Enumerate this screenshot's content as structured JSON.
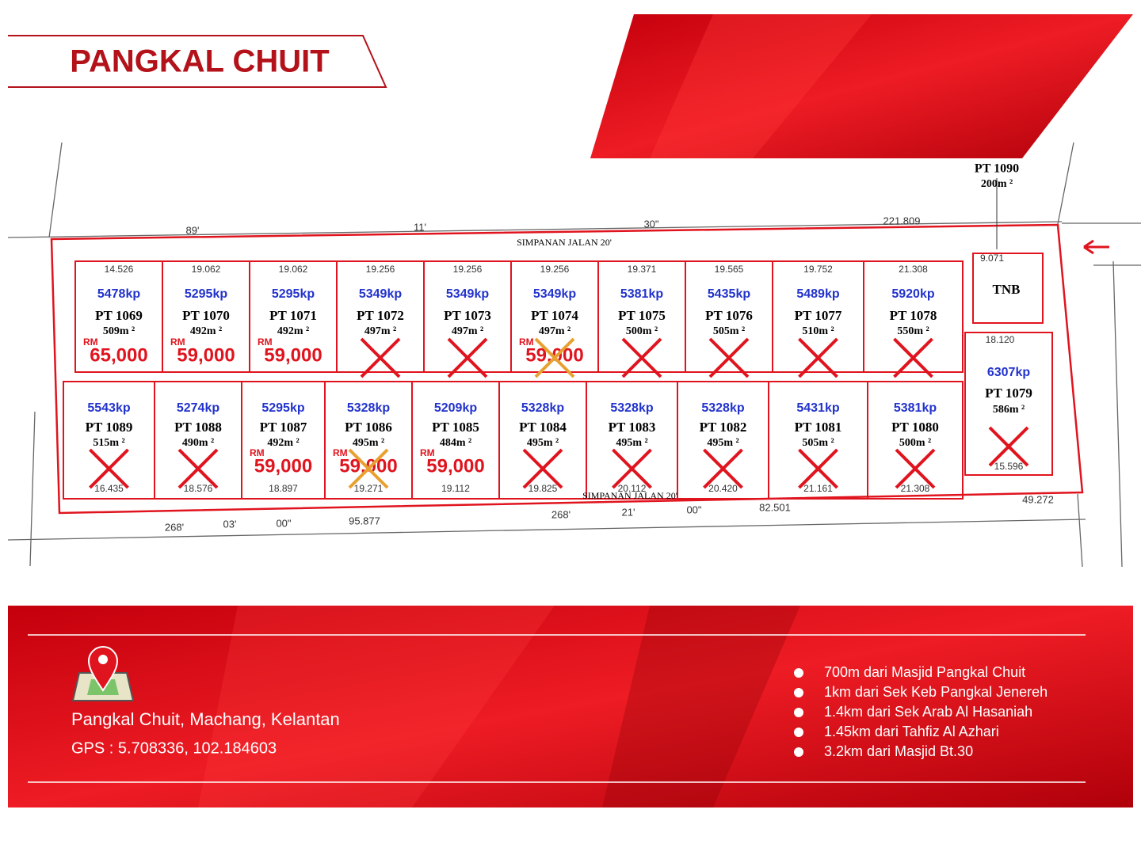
{
  "header": {
    "title": "PANGKAL CHUIT"
  },
  "roads": [
    "SIMPANAN JALAN 20'",
    "SIMPANAN JALAN 20'"
  ],
  "pt1090": {
    "lot": "PT 1090",
    "area": "200m ²"
  },
  "tnb": {
    "label": "TNB",
    "width": "9.071"
  },
  "top_row": [
    {
      "lot": "PT 1069",
      "rate": "5478kp",
      "area": "509m ²",
      "currency": "RM",
      "price": "65,000",
      "dim": "14.526"
    },
    {
      "lot": "PT 1070",
      "rate": "5295kp",
      "area": "492m ²",
      "currency": "RM",
      "price": "59,000",
      "dim": "19.062"
    },
    {
      "lot": "PT 1071",
      "rate": "5295kp",
      "area": "492m ²",
      "currency": "RM",
      "price": "59,000",
      "dim": "19.062"
    },
    {
      "lot": "PT 1072",
      "rate": "5349kp",
      "area": "497m ²",
      "cross_color": "#e0141e",
      "dim": "19.256"
    },
    {
      "lot": "PT 1073",
      "rate": "5349kp",
      "area": "497m ²",
      "cross_color": "#e0141e",
      "dim": "19.256"
    },
    {
      "lot": "PT 1074",
      "rate": "5349kp",
      "area": "497m ²",
      "currency": "RM",
      "price": "59,000",
      "cross_color": "#e8a030",
      "dim": "19.256"
    },
    {
      "lot": "PT 1075",
      "rate": "5381kp",
      "area": "500m ²",
      "cross_color": "#e0141e",
      "dim": "19.371"
    },
    {
      "lot": "PT 1076",
      "rate": "5435kp",
      "area": "505m ²",
      "cross_color": "#e0141e",
      "dim": "19.565"
    },
    {
      "lot": "PT 1077",
      "rate": "5489kp",
      "area": "510m ²",
      "cross_color": "#e0141e",
      "dim": "19.752"
    },
    {
      "lot": "PT 1078",
      "rate": "5920kp",
      "area": "550m ²",
      "cross_color": "#e0141e",
      "dim": "21.308"
    }
  ],
  "bottom_row": [
    {
      "lot": "PT 1089",
      "rate": "5543kp",
      "area": "515m ²",
      "cross_color": "#e0141e",
      "dim": "16.435"
    },
    {
      "lot": "PT 1088",
      "rate": "5274kp",
      "area": "490m ²",
      "cross_color": "#e0141e",
      "dim": "18.576"
    },
    {
      "lot": "PT 1087",
      "rate": "5295kp",
      "area": "492m ²",
      "currency": "RM",
      "price": "59,000",
      "dim": "18.897"
    },
    {
      "lot": "PT 1086",
      "rate": "5328kp",
      "area": "495m ²",
      "currency": "RM",
      "price": "59,000",
      "cross_color": "#e8a030",
      "dim": "19.271"
    },
    {
      "lot": "PT 1085",
      "rate": "5209kp",
      "area": "484m ²",
      "currency": "RM",
      "price": "59,000",
      "dim": "19.112"
    },
    {
      "lot": "PT 1084",
      "rate": "5328kp",
      "area": "495m ²",
      "cross_color": "#e0141e",
      "dim": "19.825"
    },
    {
      "lot": "PT 1083",
      "rate": "5328kp",
      "area": "495m ²",
      "cross_color": "#e0141e",
      "dim": "20.112"
    },
    {
      "lot": "PT 1082",
      "rate": "5328kp",
      "area": "495m ²",
      "cross_color": "#e0141e",
      "dim": "20.420"
    },
    {
      "lot": "PT 1081",
      "rate": "5431kp",
      "area": "505m ²",
      "cross_color": "#e0141e",
      "dim": "21.161"
    },
    {
      "lot": "PT 1080",
      "rate": "5381kp",
      "area": "500m ²",
      "cross_color": "#e0141e",
      "dim": "21.308"
    }
  ],
  "corner_plot": {
    "lot": "PT 1079",
    "rate": "6307kp",
    "area": "586m ²",
    "cross_color": "#e0141e",
    "dim": "15.596",
    "top_dim": "18.120"
  },
  "boundary_labels": [
    "89'",
    "11'",
    "30\"",
    "221.809",
    "268'",
    "03'",
    "00\"",
    "95.877",
    "268'",
    "21'",
    "00\"",
    "82.501",
    "49.272"
  ],
  "footer": {
    "location": "Pangkal Chuit, Machang, Kelantan",
    "gps": "GPS : 5.708336, 102.184603",
    "nearby": [
      "700m dari Masjid Pangkal Chuit",
      "1km dari Sek Keb Pangkal Jenereh",
      "1.4km dari Sek Arab Al Hasaniah",
      "1.45km dari Tahfiz Al Azhari",
      "3.2km dari Masjid Bt.30"
    ]
  }
}
